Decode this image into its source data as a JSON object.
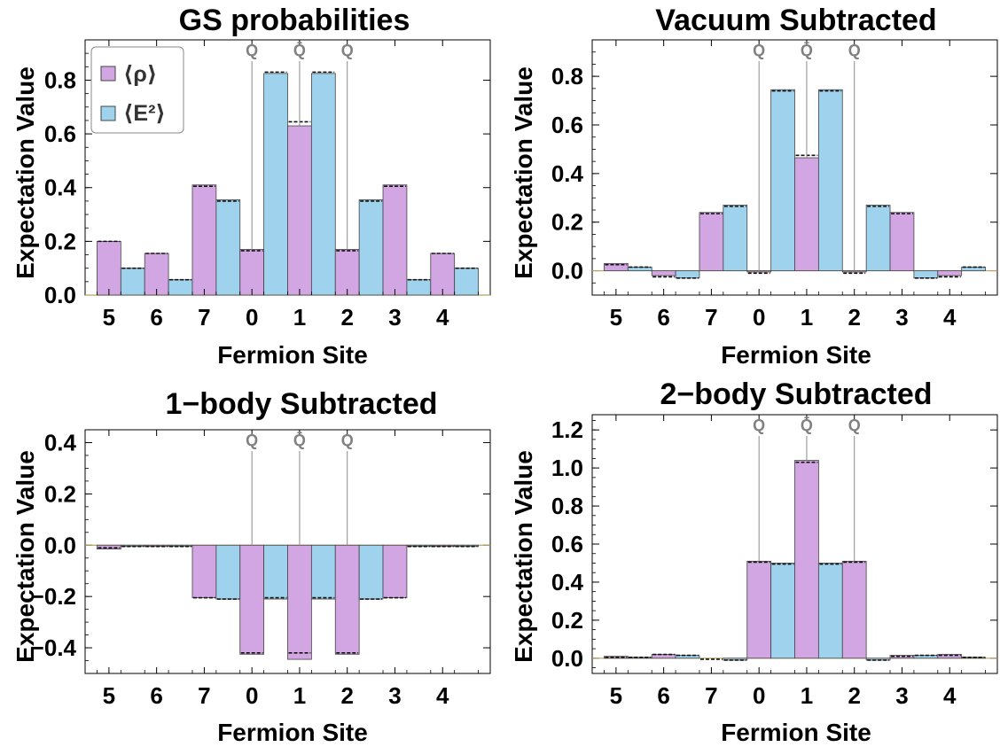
{
  "colors": {
    "rho": "#d2a6e2",
    "e2": "#9fd2ec",
    "edge": "#444444",
    "marker": "#8a8a8a",
    "dashed": "#111111"
  },
  "legend": {
    "rho_label": "⟨ρ⟩",
    "e2_label": "⟨E²⟩",
    "placement": "top-left (first panel only)"
  },
  "chart_data": [
    {
      "type": "bar",
      "title": "GS probabilities",
      "xlabel": "Fermion Site",
      "ylabel": "Expectation Value",
      "ylim": [
        0,
        0.95
      ],
      "yticks": [
        "0.0",
        "0.2",
        "0.4",
        "0.6",
        "0.8"
      ],
      "yticks_values": [
        0,
        0.2,
        0.4,
        0.6,
        0.8
      ],
      "sites": [
        "5",
        "6",
        "7",
        "0",
        "1",
        "2",
        "3",
        "4"
      ],
      "rho": [
        0.2,
        0.155,
        0.41,
        0.17,
        0.63,
        0.17,
        0.41,
        0.155
      ],
      "rho_dashed": [
        0.2,
        0.155,
        0.405,
        0.165,
        0.645,
        0.165,
        0.405,
        0.155
      ],
      "e2": [
        0.1,
        0.057,
        0.355,
        0.825,
        0.825,
        0.355,
        0.057,
        0.1
      ],
      "e2_dashed": [
        0.1,
        0.057,
        0.35,
        0.83,
        0.83,
        0.35,
        0.057,
        0.1
      ],
      "markers": [
        "Q",
        "Q̄",
        "Q"
      ]
    },
    {
      "type": "bar",
      "title": "Vacuum Subtracted",
      "xlabel": "Fermion Site",
      "ylabel": "Expectation Value",
      "ylim": [
        -0.1,
        0.95
      ],
      "yticks": [
        "0.0",
        "0.2",
        "0.4",
        "0.6",
        "0.8"
      ],
      "yticks_values": [
        0,
        0.2,
        0.4,
        0.6,
        0.8
      ],
      "sites": [
        "5",
        "6",
        "7",
        "0",
        "1",
        "2",
        "3",
        "4"
      ],
      "rho": [
        0.03,
        -0.02,
        0.24,
        -0.005,
        0.465,
        -0.005,
        0.24,
        -0.02
      ],
      "rho_dashed": [
        0.025,
        -0.025,
        0.235,
        -0.01,
        0.475,
        -0.01,
        0.235,
        -0.025
      ],
      "e2": [
        0.015,
        -0.03,
        0.27,
        0.745,
        0.745,
        0.27,
        -0.03,
        0.015
      ],
      "e2_dashed": [
        0.015,
        -0.03,
        0.265,
        0.74,
        0.74,
        0.265,
        -0.03,
        0.015
      ],
      "markers": [
        "Q",
        "Q̄",
        "Q"
      ]
    },
    {
      "type": "bar",
      "title": "1−body Subtracted",
      "xlabel": "Fermion Site",
      "ylabel": "Expectation Value",
      "ylim": [
        -0.5,
        0.45
      ],
      "yticks": [
        "−0.4",
        "−0.2",
        "0.0",
        "0.2",
        "0.4"
      ],
      "yticks_values": [
        -0.4,
        -0.2,
        0,
        0.2,
        0.4
      ],
      "sites": [
        "5",
        "6",
        "7",
        "0",
        "1",
        "2",
        "3",
        "4"
      ],
      "rho": [
        -0.015,
        -0.005,
        -0.205,
        -0.425,
        -0.445,
        -0.425,
        -0.205,
        -0.005
      ],
      "rho_dashed": [
        -0.01,
        -0.005,
        -0.205,
        -0.42,
        -0.42,
        -0.42,
        -0.205,
        -0.005
      ],
      "e2": [
        -0.005,
        -0.005,
        -0.21,
        -0.21,
        -0.21,
        -0.21,
        -0.005,
        -0.005
      ],
      "e2_dashed": [
        -0.005,
        -0.005,
        -0.21,
        -0.205,
        -0.205,
        -0.21,
        -0.005,
        -0.005
      ],
      "markers": [
        "Q",
        "Q̄",
        "Q"
      ]
    },
    {
      "type": "bar",
      "title": "2−body Subtracted",
      "xlabel": "Fermion Site",
      "ylabel": "Expectation Value",
      "ylim": [
        -0.08,
        1.28
      ],
      "yticks": [
        "0.0",
        "0.2",
        "0.4",
        "0.6",
        "0.8",
        "1.0",
        "1.2"
      ],
      "yticks_values": [
        0,
        0.2,
        0.4,
        0.6,
        0.8,
        1.0,
        1.2
      ],
      "sites": [
        "5",
        "6",
        "7",
        "0",
        "1",
        "2",
        "3",
        "4"
      ],
      "rho": [
        0.01,
        0.02,
        0.0,
        0.51,
        1.04,
        0.51,
        0.015,
        0.02
      ],
      "rho_dashed": [
        0.005,
        0.02,
        -0.005,
        0.505,
        1.03,
        0.505,
        0.01,
        0.015
      ],
      "e2": [
        0.005,
        0.015,
        -0.01,
        0.5,
        0.5,
        -0.01,
        0.015,
        0.005
      ],
      "e2_dashed": [
        0.005,
        0.015,
        -0.01,
        0.495,
        0.495,
        -0.01,
        0.015,
        0.005
      ],
      "markers": [
        "Q",
        "Q̄",
        "Q"
      ]
    }
  ]
}
